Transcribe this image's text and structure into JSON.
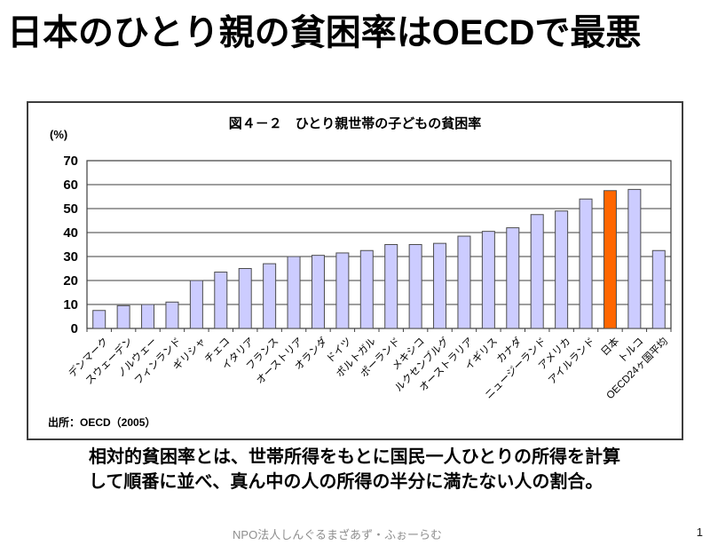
{
  "page": {
    "title": "日本のひとり親の貧困率はOECDで最悪",
    "description_line1": "相対的貧困率とは、世帯所得をもとに国民一人ひとりの所得を計算",
    "description_line2": "して順番に並べ、真ん中の人の所得の半分に満たない人の割合。",
    "footer_org": "NPO法人しんぐるまざあず・ふぉーらむ",
    "page_number": "1"
  },
  "chart": {
    "title": "図４－２　ひとり親世帯の子どもの貧困率",
    "unit_label": "(%)",
    "source": "出所：OECD（2005）"
  },
  "chart_data": {
    "type": "bar",
    "title": "図４－２　ひとり親世帯の子どもの貧困率",
    "ylabel": "%",
    "xlabel": "",
    "ylim": [
      0,
      70
    ],
    "ytick_step": 10,
    "grid": true,
    "source": "出所：OECD（2005）",
    "categories": [
      "デンマーク",
      "スウェーデン",
      "ノルウェー",
      "フィンランド",
      "ギリシャ",
      "チェコ",
      "イタリア",
      "フランス",
      "オーストリア",
      "オランダ",
      "ドイツ",
      "ポルトガル",
      "ポーランド",
      "メキシコ",
      "ルクセンブルグ",
      "オーストラリア",
      "イギリス",
      "カナダ",
      "ニュージーランド",
      "アメリカ",
      "アイルランド",
      "日本",
      "トルコ",
      "OECD24ヶ国平均"
    ],
    "values": [
      7.5,
      9.5,
      10,
      11,
      20,
      23.5,
      25,
      27,
      30,
      30.5,
      31.5,
      32.5,
      35,
      35,
      35.5,
      38.5,
      40.5,
      42,
      47.5,
      49,
      54,
      57.5,
      58,
      32.5
    ],
    "highlight_index": 21,
    "highlight_category": "日本",
    "bar_color": "#ccccff",
    "bar_border_color": "#4d4d4d",
    "highlight_color": "#ff6600",
    "grid_color": "#3d3d3d",
    "legend": null
  }
}
